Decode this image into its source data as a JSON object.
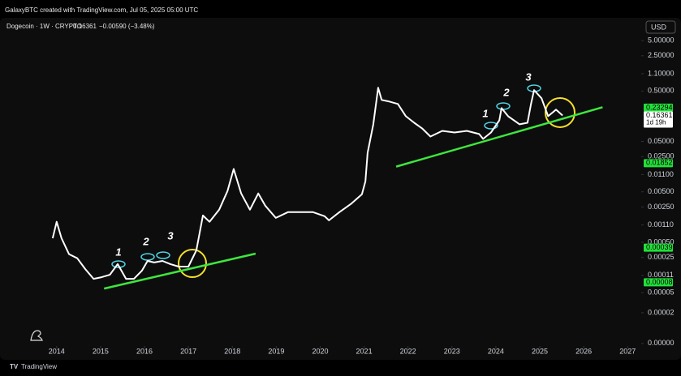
{
  "header": {
    "credit": "GalaxyBTC created with TradingView.com, Jul 05, 2025 05:00 UTC",
    "symbol": "Dogecoin · 1W · CRYPTO",
    "last": "0.16361",
    "change": "−0.00590 (−3.48%)",
    "currency": "USD",
    "brand": "TradingView"
  },
  "chart_data": {
    "type": "line",
    "x": [
      2013.91,
      2014.0,
      2014.11,
      2014.28,
      2014.47,
      2014.65,
      2014.84,
      2015.02,
      2015.21,
      2015.39,
      2015.58,
      2015.76,
      2015.94,
      2016.07,
      2016.22,
      2016.41,
      2016.59,
      2016.78,
      2017.0,
      2017.18,
      2017.33,
      2017.48,
      2017.7,
      2017.89,
      2018.03,
      2018.2,
      2018.4,
      2018.59,
      2018.75,
      2018.99,
      2019.27,
      2019.55,
      2019.83,
      2020.1,
      2020.2,
      2020.44,
      2020.7,
      2020.95,
      2021.03,
      2021.08,
      2021.21,
      2021.32,
      2021.4,
      2021.58,
      2021.77,
      2021.95,
      2022.14,
      2022.32,
      2022.51,
      2022.78,
      2023.06,
      2023.34,
      2023.62,
      2023.71,
      2023.89,
      2024.08,
      2024.13,
      2024.28,
      2024.54,
      2024.72,
      2024.8,
      2024.87,
      2025.04,
      2025.19,
      2025.37,
      2025.52
    ],
    "series": [
      {
        "color": "#ffffff",
        "values": [
          0.0006,
          0.00127,
          0.0006,
          0.00029,
          0.00024,
          0.000147,
          9.4e-05,
          0.000101,
          0.000113,
          0.000184,
          9.4e-05,
          9.4e-05,
          0.000136,
          0.000213,
          0.000198,
          0.000213,
          0.000184,
          0.000164,
          0.000164,
          0.000345,
          0.0017,
          0.00127,
          0.00221,
          0.00519,
          0.0142,
          0.00465,
          0.00221,
          0.00465,
          0.00266,
          0.00152,
          0.00198,
          0.00198,
          0.00198,
          0.00164,
          0.00136,
          0.00198,
          0.00287,
          0.00448,
          0.0081,
          0.0297,
          0.109,
          0.58,
          0.333,
          0.308,
          0.276,
          0.158,
          0.117,
          0.0906,
          0.0625,
          0.081,
          0.075,
          0.081,
          0.07,
          0.056,
          0.075,
          0.131,
          0.229,
          0.158,
          0.109,
          0.117,
          0.276,
          0.52,
          0.358,
          0.158,
          0.213,
          0.1636
        ]
      }
    ],
    "trendlines": [
      {
        "color": "#3ee63e",
        "x": [
          2015.08,
          2018.53
        ],
        "values": [
          6.02e-05,
          0.000297
        ]
      },
      {
        "color": "#3ee63e",
        "x": [
          2021.73,
          2026.43
        ],
        "values": [
          0.0158,
          0.238
        ]
      }
    ],
    "annotations": [
      "1",
      "2",
      "3",
      "1",
      "2",
      "3"
    ],
    "log_scale": true,
    "xlim": [
      2012.71,
      2027.31
    ],
    "xticks": [
      2014,
      2015,
      2016,
      2017,
      2018,
      2019,
      2020,
      2021,
      2022,
      2023,
      2024,
      2025,
      2026,
      2027
    ],
    "ylim": [
      4.7e-06,
      6.5
    ],
    "yticks": [
      {
        "value": 5,
        "label": "5.00000"
      },
      {
        "value": 2.5,
        "label": "2.50000"
      },
      {
        "value": 1.1,
        "label": "1.10000"
      },
      {
        "value": 0.5,
        "label": "0.50000"
      },
      {
        "value": 0.05,
        "label": "0.05000"
      },
      {
        "value": 0.025,
        "label": "0.02500"
      },
      {
        "value": 0.011,
        "label": "0.01100"
      },
      {
        "value": 0.005,
        "label": "0.00500"
      },
      {
        "value": 0.0025,
        "label": "0.00250"
      },
      {
        "value": 0.0011,
        "label": "0.00110"
      },
      {
        "value": 0.0005,
        "label": "0.00050"
      },
      {
        "value": 0.00025,
        "label": "0.00025"
      },
      {
        "value": 0.00011,
        "label": "0.00011"
      },
      {
        "value": 5e-05,
        "label": "0.00005"
      },
      {
        "value": 2e-05,
        "label": "0.00002"
      },
      {
        "value": 4.9e-06,
        "label": "0.00000"
      }
    ],
    "price_labels": [
      {
        "value": 0.23294,
        "color": "#22e03a"
      },
      {
        "value": 0.16361,
        "color": "#ffffff",
        "countdown": "1d 19h"
      },
      {
        "value": 0.01852,
        "color": "#22e03a"
      },
      {
        "value": 0.00039,
        "color": "#22e03a"
      },
      {
        "value": 8e-05,
        "color": "#22e03a"
      }
    ]
  }
}
